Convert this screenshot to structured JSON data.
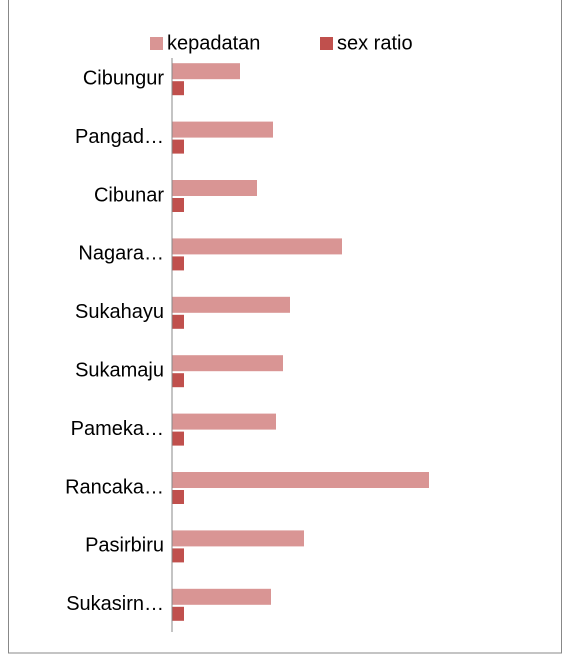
{
  "chart_data": {
    "type": "hbar",
    "categories": [
      "Cibungur",
      "Pangad…",
      "Cibunar",
      "Nagara…",
      "Sukahayu",
      "Sukamaju",
      "Pameka…",
      "Rancaka…",
      "Pasirbiru",
      "Sukasirn…"
    ],
    "series": [
      {
        "name": "kepadatan",
        "color": "#d99594",
        "values": [
          68,
          101,
          85,
          170,
          118,
          111,
          104,
          257,
          132,
          99
        ]
      },
      {
        "name": "sex ratio",
        "color": "#c0504d",
        "values": [
          12,
          12,
          12,
          12,
          12,
          12,
          12,
          12,
          12,
          12
        ]
      }
    ],
    "xlim": [
      0,
      300
    ],
    "legend": "top"
  }
}
